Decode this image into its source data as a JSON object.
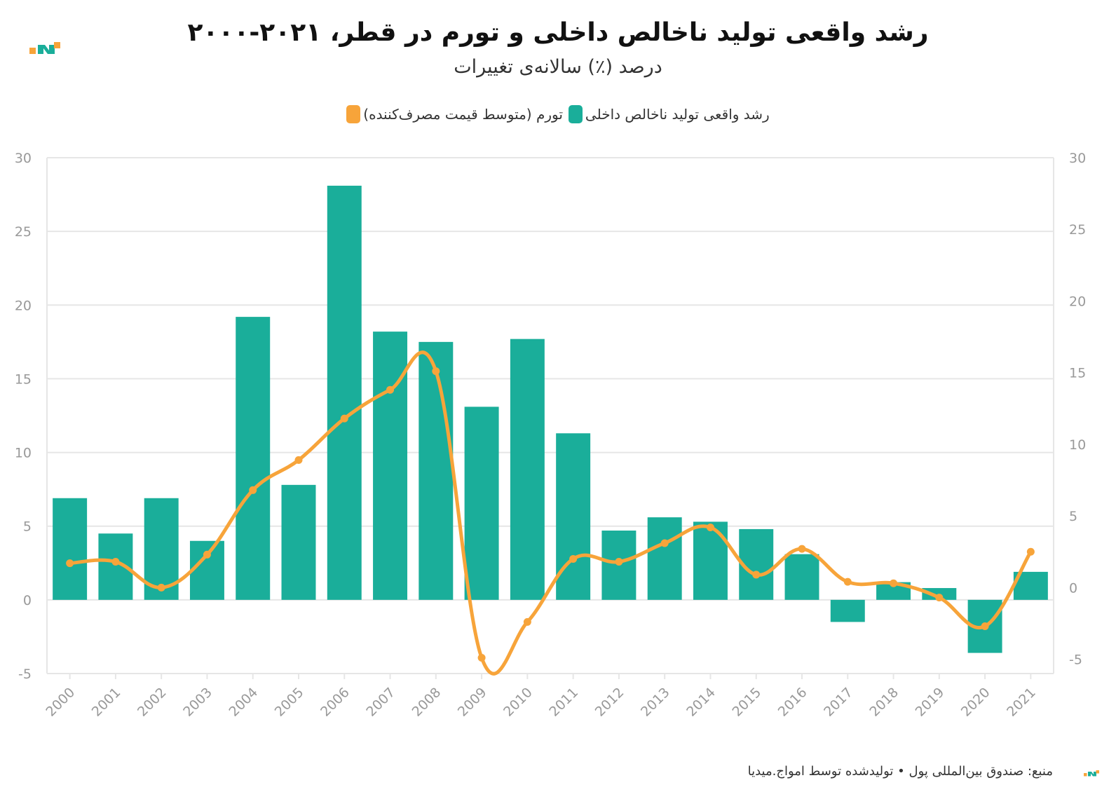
{
  "colors": {
    "gdp": "#1aae9a",
    "inflation": "#f7a43a",
    "grid": "#e6e6e6",
    "tick": "#999999",
    "logo_teal": "#1aae9a",
    "logo_orange": "#f7a43a"
  },
  "icons": {
    "brand_logo": "amwaj-media-logo-icon"
  },
  "chart_data": {
    "type": "bar",
    "title": "رشد واقعی تولید ناخالص داخلی و تورم در قطر، ۲۰۲۱-۲۰۰۰",
    "subtitle": "درصد (٪) سالانه‌ی تغییرات",
    "categories": [
      "2000",
      "2001",
      "2002",
      "2003",
      "2004",
      "2005",
      "2006",
      "2007",
      "2008",
      "2009",
      "2010",
      "2011",
      "2012",
      "2013",
      "2014",
      "2015",
      "2016",
      "2017",
      "2018",
      "2019",
      "2020",
      "2021"
    ],
    "series": [
      {
        "name": "رشد واقعی تولید ناخالص داخلی",
        "type": "bar",
        "axis": "left",
        "values": [
          6.9,
          4.5,
          6.9,
          4.0,
          19.2,
          7.8,
          28.1,
          18.2,
          17.5,
          13.1,
          17.7,
          11.3,
          4.7,
          5.6,
          5.3,
          4.8,
          3.1,
          -1.5,
          1.2,
          0.8,
          -3.6,
          1.9
        ]
      },
      {
        "name": "تورم (متوسط قیمت مصرف‌کننده)",
        "type": "line",
        "axis": "right",
        "values": [
          1.7,
          1.8,
          0.0,
          2.3,
          6.8,
          8.9,
          11.8,
          13.8,
          15.1,
          -4.9,
          -2.4,
          2.0,
          1.8,
          3.1,
          4.2,
          0.9,
          2.7,
          0.4,
          0.3,
          -0.7,
          -2.7,
          2.5
        ]
      }
    ],
    "y_left": {
      "min": -5,
      "max": 30,
      "ticks": [
        -5,
        0,
        5,
        10,
        15,
        20,
        25,
        30
      ]
    },
    "y_right": {
      "min": -6,
      "max": 30,
      "ticks": [
        -5,
        0,
        5,
        10,
        15,
        20,
        25,
        30
      ]
    },
    "grid": true,
    "legend_position": "top-center"
  },
  "footer": {
    "text": "منبع: صندوق بین‌المللی پول • تولیدشده توسط امواج.میدیا"
  }
}
